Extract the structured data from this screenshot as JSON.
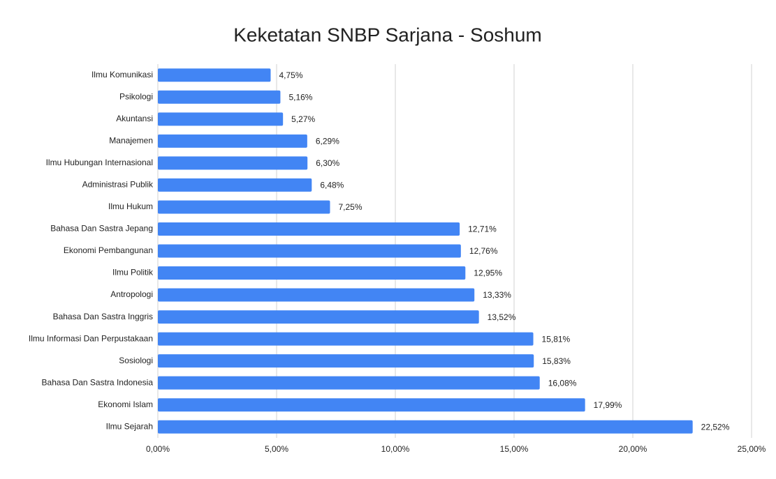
{
  "chart_data": {
    "type": "bar",
    "orientation": "horizontal",
    "title": "Keketatan SNBP Sarjana - Soshum",
    "categories": [
      "Ilmu Komunikasi",
      "Psikologi",
      "Akuntansi",
      "Manajemen",
      "Ilmu Hubungan Internasional",
      "Administrasi Publik",
      "Ilmu Hukum",
      "Bahasa Dan Sastra Jepang",
      "Ekonomi Pembangunan",
      "Ilmu Politik",
      "Antropologi",
      "Bahasa Dan Sastra Inggris",
      "Ilmu Informasi Dan Perpustakaan",
      "Sosiologi",
      "Bahasa Dan Sastra Indonesia",
      "Ekonomi Islam",
      "Ilmu Sejarah"
    ],
    "values": [
      4.75,
      5.16,
      5.27,
      6.29,
      6.3,
      6.48,
      7.25,
      12.71,
      12.76,
      12.95,
      13.33,
      13.52,
      15.81,
      15.83,
      16.08,
      17.99,
      22.52
    ],
    "value_labels": [
      "4,75%",
      "5,16%",
      "5,27%",
      "6,29%",
      "6,30%",
      "6,48%",
      "7,25%",
      "12,71%",
      "12,76%",
      "12,95%",
      "13,33%",
      "13,52%",
      "15,81%",
      "15,83%",
      "16,08%",
      "17,99%",
      "22,52%"
    ],
    "color": "#4285f4",
    "xlim": [
      0,
      25
    ],
    "xticks": [
      {
        "value": 0,
        "label": "0,00%"
      },
      {
        "value": 5,
        "label": "5,00%"
      },
      {
        "value": 10,
        "label": "10,00%"
      },
      {
        "value": 15,
        "label": "15,00%"
      },
      {
        "value": 20,
        "label": "20,00%"
      },
      {
        "value": 25,
        "label": "25,00%"
      }
    ],
    "grid": true
  }
}
